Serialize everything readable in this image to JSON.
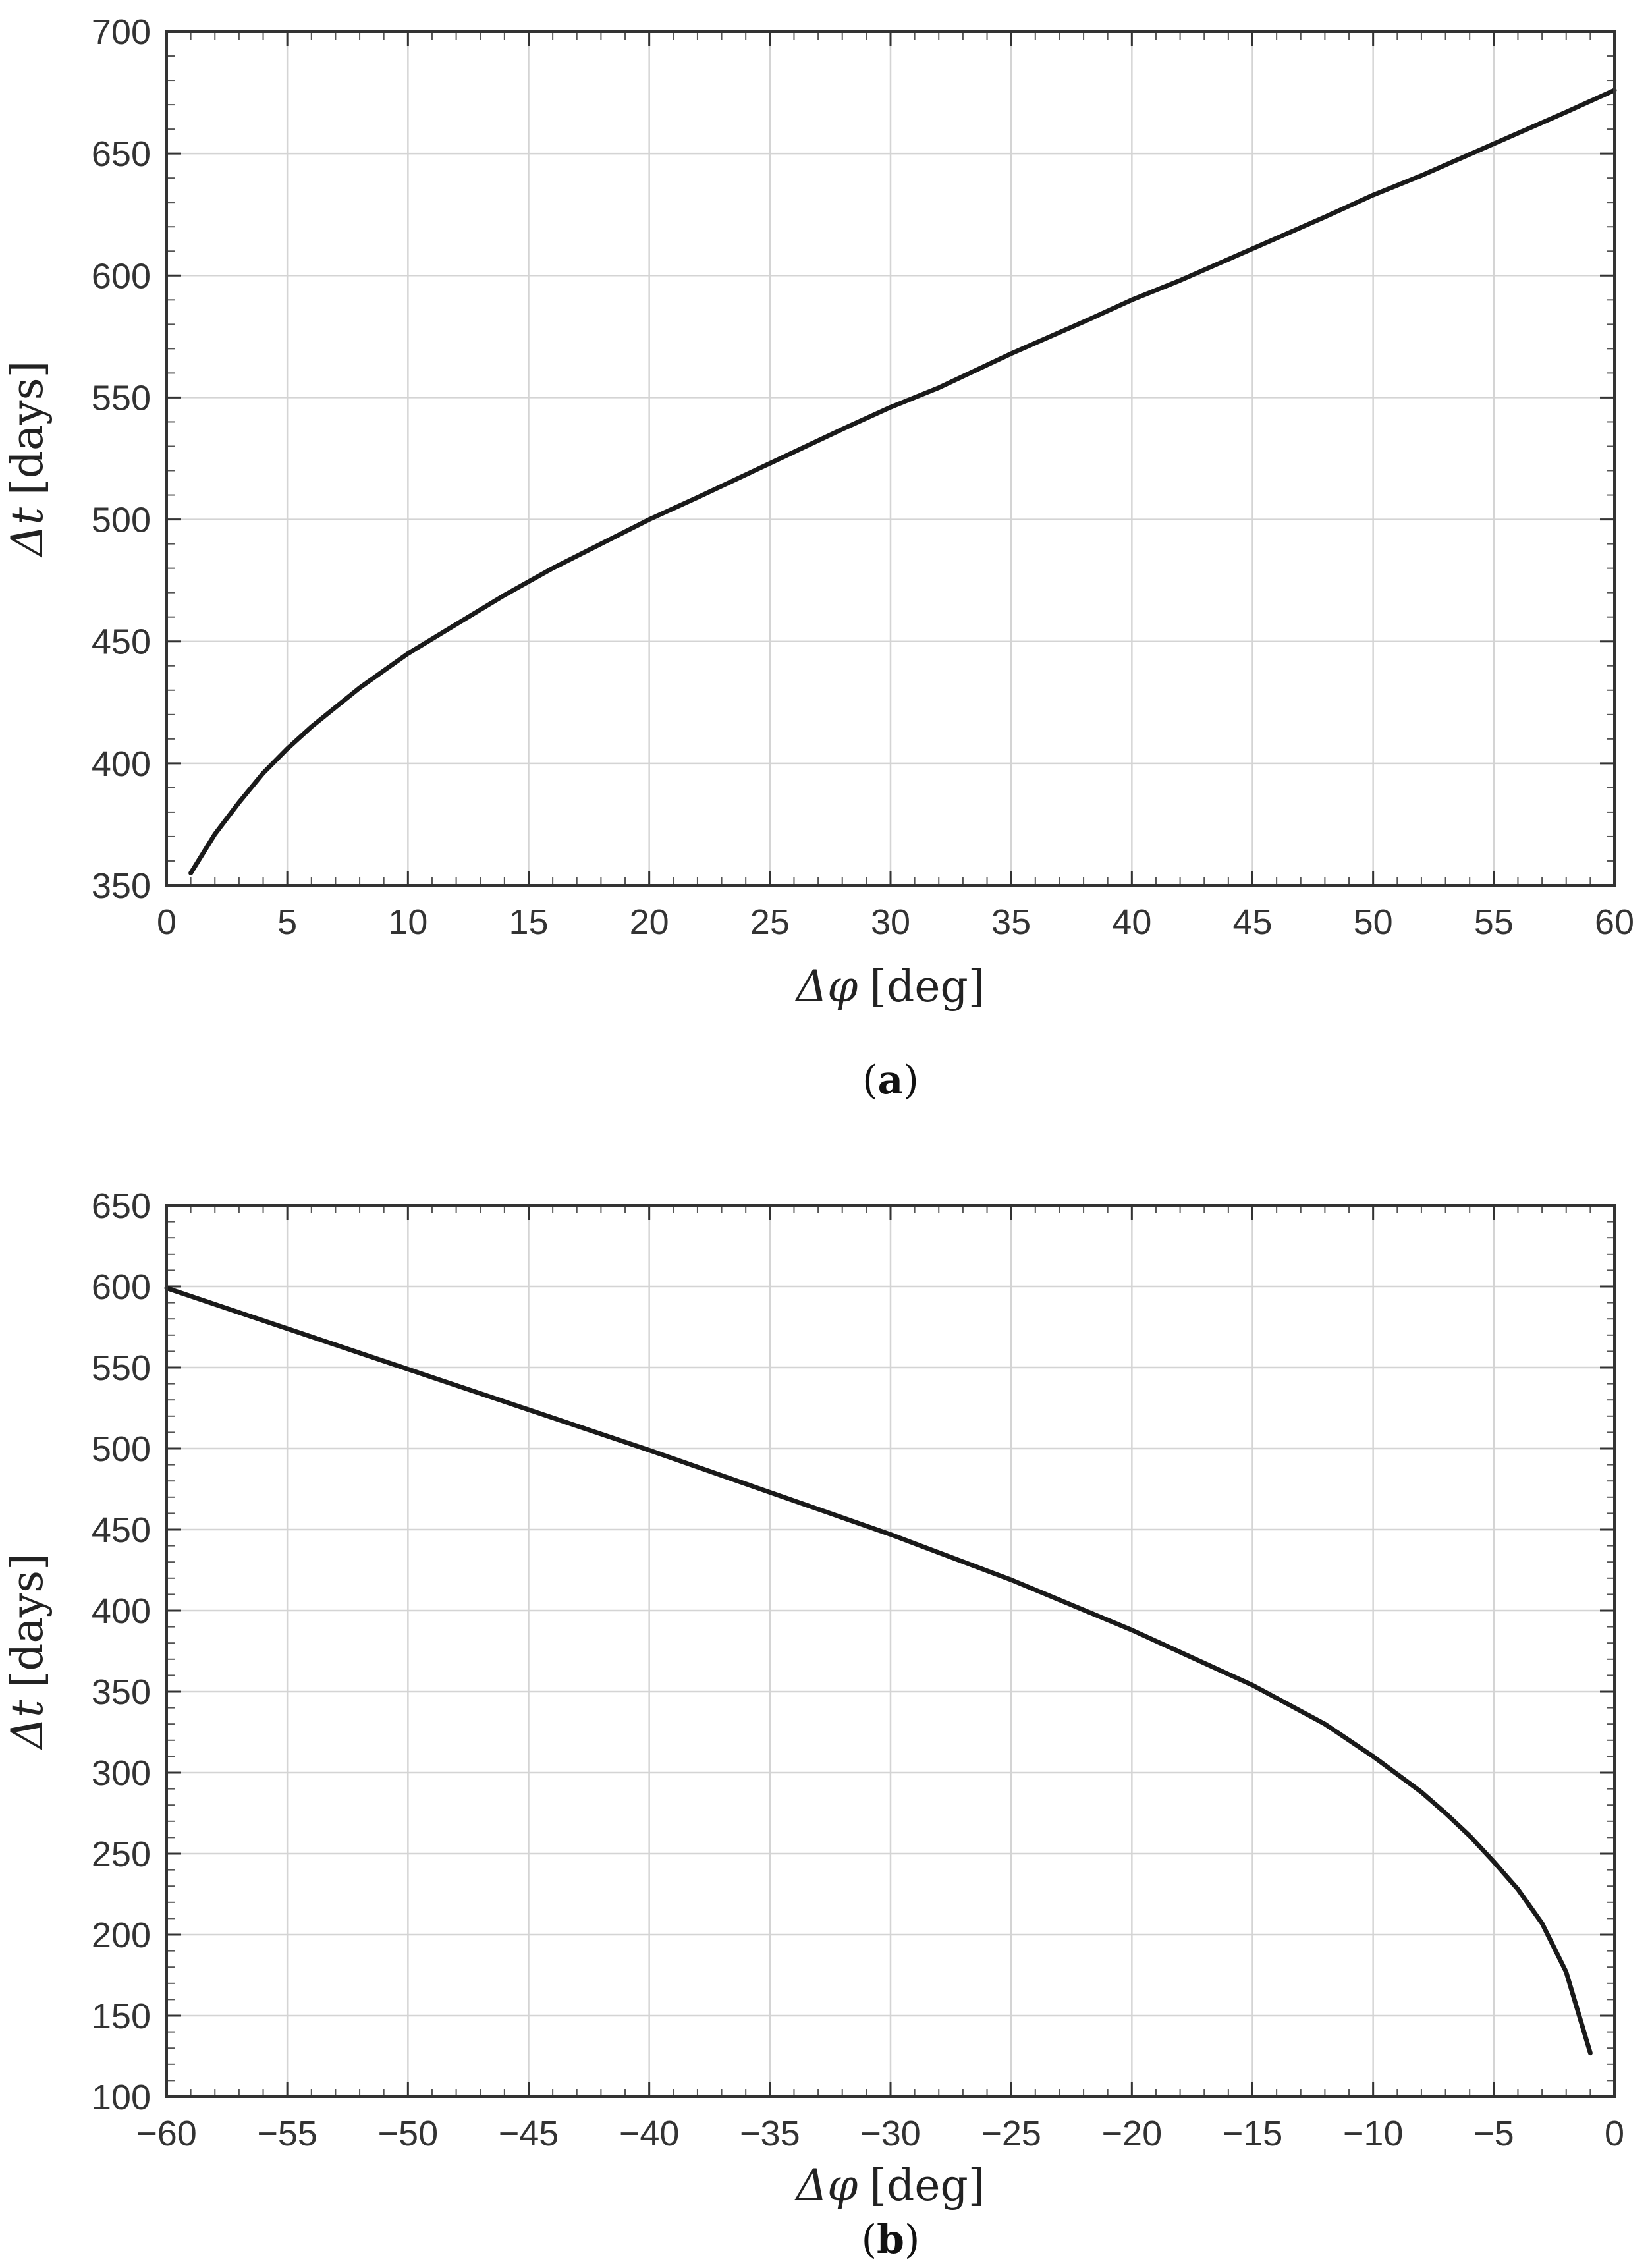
{
  "chart_data": [
    {
      "type": "line",
      "panel": "a",
      "caption": "(a)",
      "caption_letter": "a",
      "xlabel_symbol": "Δφ",
      "xlabel_unit": "[deg]",
      "ylabel_symbol": "Δt",
      "ylabel_unit": "[days]",
      "xlim": [
        0,
        60
      ],
      "ylim": [
        350,
        700
      ],
      "xticks": [
        0,
        5,
        10,
        15,
        20,
        25,
        30,
        35,
        40,
        45,
        50,
        55,
        60
      ],
      "xtick_labels": [
        "0",
        "5",
        "10",
        "15",
        "20",
        "25",
        "30",
        "35",
        "40",
        "45",
        "50",
        "55",
        "60"
      ],
      "yticks": [
        350,
        400,
        450,
        500,
        550,
        600,
        650,
        700
      ],
      "ytick_labels": [
        "350",
        "400",
        "450",
        "500",
        "550",
        "600",
        "650",
        "700"
      ],
      "grid": true,
      "series": [
        {
          "color": "#1a1a1a",
          "x": [
            1,
            2,
            3,
            4,
            5,
            6,
            7,
            8,
            9,
            10,
            12,
            14,
            16,
            18,
            20,
            22,
            25,
            28,
            30,
            32,
            35,
            38,
            40,
            42,
            45,
            48,
            50,
            52,
            55,
            58,
            60
          ],
          "y": [
            355,
            371,
            384,
            396,
            406,
            415,
            423,
            431,
            438,
            445,
            457,
            469,
            480,
            490,
            500,
            509,
            523,
            537,
            546,
            554,
            568,
            581,
            590,
            598,
            611,
            624,
            633,
            641,
            654,
            667,
            676
          ]
        }
      ]
    },
    {
      "type": "line",
      "panel": "b",
      "caption": "(b)",
      "caption_letter": "b",
      "xlabel_symbol": "Δφ",
      "xlabel_unit": "[deg]",
      "ylabel_symbol": "Δt",
      "ylabel_unit": "[days]",
      "xlim": [
        -60,
        0
      ],
      "ylim": [
        100,
        650
      ],
      "xticks": [
        -60,
        -55,
        -50,
        -45,
        -40,
        -35,
        -30,
        -25,
        -20,
        -15,
        -10,
        -5,
        0
      ],
      "xtick_labels": [
        "−60",
        "−55",
        "−50",
        "−45",
        "−40",
        "−35",
        "−30",
        "−25",
        "−20",
        "−15",
        "−10",
        "−5",
        "0"
      ],
      "yticks": [
        100,
        150,
        200,
        250,
        300,
        350,
        400,
        450,
        500,
        550,
        600,
        650
      ],
      "ytick_labels": [
        "100",
        "150",
        "200",
        "250",
        "300",
        "350",
        "400",
        "450",
        "500",
        "550",
        "600",
        "650"
      ],
      "grid": true,
      "series": [
        {
          "color": "#1a1a1a",
          "x": [
            -60,
            -55,
            -50,
            -45,
            -40,
            -35,
            -30,
            -25,
            -20,
            -15,
            -12,
            -10,
            -8,
            -7,
            -6,
            -5,
            -4,
            -3,
            -2,
            -1
          ],
          "y": [
            599,
            574,
            549,
            524,
            499,
            473,
            447,
            419,
            388,
            354,
            330,
            310,
            288,
            275,
            261,
            245,
            228,
            207,
            177,
            127
          ]
        }
      ]
    }
  ]
}
